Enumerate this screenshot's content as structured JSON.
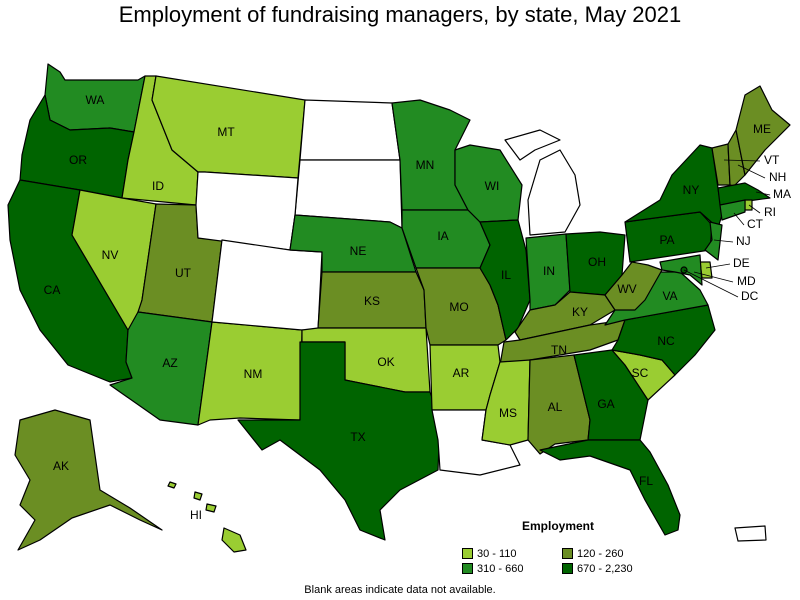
{
  "title": "Employment of fundraising managers, by state, May 2021",
  "note": "Blank areas indicate data not available.",
  "colors": {
    "c1": "#9acd32",
    "c2": "#6b8e23",
    "c3": "#228b22",
    "c4": "#006400",
    "blank": "#ffffff"
  },
  "legend": {
    "title": "Employment",
    "items": [
      {
        "label": "30 - 110",
        "color": "#9acd32"
      },
      {
        "label": "120 - 260",
        "color": "#6b8e23"
      },
      {
        "label": "310 - 660",
        "color": "#228b22"
      },
      {
        "label": "670 - 2,230",
        "color": "#006400"
      }
    ]
  },
  "states": [
    {
      "abbr": "WA",
      "cls": "c3"
    },
    {
      "abbr": "OR",
      "cls": "c4"
    },
    {
      "abbr": "CA",
      "cls": "c4"
    },
    {
      "abbr": "ID",
      "cls": "c1"
    },
    {
      "abbr": "NV",
      "cls": "c1"
    },
    {
      "abbr": "MT",
      "cls": "c1"
    },
    {
      "abbr": "UT",
      "cls": "c2"
    },
    {
      "abbr": "AZ",
      "cls": "c3"
    },
    {
      "abbr": "NM",
      "cls": "c1"
    },
    {
      "abbr": "ND",
      "cls": "blank"
    },
    {
      "abbr": "SD",
      "cls": "blank"
    },
    {
      "abbr": "WY",
      "cls": "blank"
    },
    {
      "abbr": "CO",
      "cls": "blank"
    },
    {
      "abbr": "NE",
      "cls": "c3"
    },
    {
      "abbr": "KS",
      "cls": "c2"
    },
    {
      "abbr": "OK",
      "cls": "c1"
    },
    {
      "abbr": "TX",
      "cls": "c4"
    },
    {
      "abbr": "MN",
      "cls": "c3"
    },
    {
      "abbr": "IA",
      "cls": "c3"
    },
    {
      "abbr": "MO",
      "cls": "c2"
    },
    {
      "abbr": "AR",
      "cls": "c1"
    },
    {
      "abbr": "LA",
      "cls": "blank"
    },
    {
      "abbr": "WI",
      "cls": "c3"
    },
    {
      "abbr": "IL",
      "cls": "c4"
    },
    {
      "abbr": "MI",
      "cls": "blank"
    },
    {
      "abbr": "IN",
      "cls": "c3"
    },
    {
      "abbr": "OH",
      "cls": "c4"
    },
    {
      "abbr": "KY",
      "cls": "c2"
    },
    {
      "abbr": "TN",
      "cls": "c2"
    },
    {
      "abbr": "MS",
      "cls": "c1"
    },
    {
      "abbr": "AL",
      "cls": "c2"
    },
    {
      "abbr": "GA",
      "cls": "c4"
    },
    {
      "abbr": "FL",
      "cls": "c4"
    },
    {
      "abbr": "SC",
      "cls": "c1"
    },
    {
      "abbr": "NC",
      "cls": "c4"
    },
    {
      "abbr": "VA",
      "cls": "c3"
    },
    {
      "abbr": "WV",
      "cls": "c2"
    },
    {
      "abbr": "PA",
      "cls": "c4"
    },
    {
      "abbr": "NY",
      "cls": "c4"
    },
    {
      "abbr": "VT",
      "cls": "c2"
    },
    {
      "abbr": "NH",
      "cls": "c2"
    },
    {
      "abbr": "ME",
      "cls": "c2"
    },
    {
      "abbr": "MA",
      "cls": "c4"
    },
    {
      "abbr": "RI",
      "cls": "c1"
    },
    {
      "abbr": "CT",
      "cls": "c3"
    },
    {
      "abbr": "NJ",
      "cls": "c3"
    },
    {
      "abbr": "DE",
      "cls": "c1"
    },
    {
      "abbr": "MD",
      "cls": "c3"
    },
    {
      "abbr": "DC",
      "cls": "c4"
    },
    {
      "abbr": "AK",
      "cls": "c2"
    },
    {
      "abbr": "HI",
      "cls": "c1"
    },
    {
      "abbr": "PR",
      "cls": "blank"
    }
  ]
}
